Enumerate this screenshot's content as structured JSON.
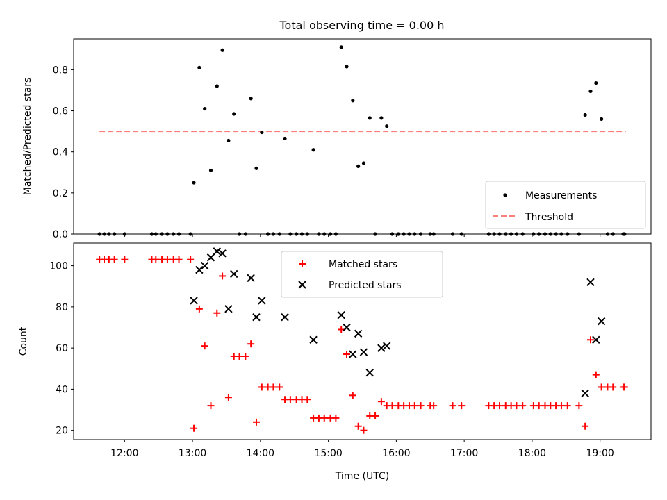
{
  "title": "Total observing time = 0.00 h",
  "colors": {
    "matched": "#ff0000",
    "predicted": "#000000",
    "threshold": "#ff7f7f",
    "measurement": "#000000"
  },
  "chart_data": [
    {
      "type": "scatter",
      "ylabel": "Matched/Predicted stars",
      "xlim": [
        11.25,
        19.75
      ],
      "ylim": [
        0,
        0.95
      ],
      "yticks": [
        0.0,
        0.2,
        0.4,
        0.6,
        0.8
      ],
      "ytick_labels": [
        "0.0",
        "0.2",
        "0.4",
        "0.6",
        "0.8"
      ],
      "legend_position": "bottom-right",
      "threshold": {
        "name": "Threshold",
        "value": 0.5,
        "x_range": [
          11.63,
          19.38
        ]
      },
      "series": [
        {
          "name": "Measurements",
          "points": [
            [
              11.63,
              0
            ],
            [
              11.7,
              0
            ],
            [
              11.77,
              0
            ],
            [
              11.85,
              0
            ],
            [
              12.0,
              0
            ],
            [
              12.4,
              0
            ],
            [
              12.46,
              0
            ],
            [
              12.55,
              0
            ],
            [
              12.63,
              0
            ],
            [
              12.72,
              0
            ],
            [
              12.8,
              0
            ],
            [
              12.97,
              0
            ],
            [
              13.02,
              0.25
            ],
            [
              13.1,
              0.81
            ],
            [
              13.18,
              0.61
            ],
            [
              13.27,
              0.31
            ],
            [
              13.36,
              0.72
            ],
            [
              13.44,
              0.895
            ],
            [
              13.53,
              0.455
            ],
            [
              13.61,
              0.585
            ],
            [
              13.69,
              0
            ],
            [
              13.78,
              0
            ],
            [
              13.86,
              0.66
            ],
            [
              13.94,
              0.32
            ],
            [
              14.02,
              0.495
            ],
            [
              14.11,
              0
            ],
            [
              14.19,
              0
            ],
            [
              14.28,
              0
            ],
            [
              14.36,
              0.465
            ],
            [
              14.44,
              0
            ],
            [
              14.53,
              0
            ],
            [
              14.61,
              0
            ],
            [
              14.69,
              0
            ],
            [
              14.78,
              0.41
            ],
            [
              14.86,
              0
            ],
            [
              14.94,
              0
            ],
            [
              15.03,
              0
            ],
            [
              15.11,
              0
            ],
            [
              15.19,
              0.91
            ],
            [
              15.27,
              0.815
            ],
            [
              15.36,
              0.65
            ],
            [
              15.44,
              0.33
            ],
            [
              15.52,
              0.345
            ],
            [
              15.61,
              0.565
            ],
            [
              15.69,
              0
            ],
            [
              15.78,
              0.565
            ],
            [
              15.86,
              0.525
            ],
            [
              15.94,
              0
            ],
            [
              16.03,
              0
            ],
            [
              16.11,
              0
            ],
            [
              16.19,
              0
            ],
            [
              16.27,
              0
            ],
            [
              16.36,
              0
            ],
            [
              16.5,
              0
            ],
            [
              16.55,
              0
            ],
            [
              16.83,
              0
            ],
            [
              16.96,
              0
            ],
            [
              17.36,
              0
            ],
            [
              17.44,
              0
            ],
            [
              17.52,
              0
            ],
            [
              17.61,
              0
            ],
            [
              17.69,
              0
            ],
            [
              17.77,
              0
            ],
            [
              17.86,
              0
            ],
            [
              18.02,
              0
            ],
            [
              18.1,
              0
            ],
            [
              18.19,
              0
            ],
            [
              18.27,
              0
            ],
            [
              18.35,
              0
            ],
            [
              18.43,
              0
            ],
            [
              18.52,
              0
            ],
            [
              18.69,
              0
            ],
            [
              18.78,
              0.58
            ],
            [
              18.86,
              0.695
            ],
            [
              18.94,
              0.735
            ],
            [
              19.02,
              0.56
            ],
            [
              19.11,
              0
            ],
            [
              19.19,
              0
            ],
            [
              19.34,
              0
            ],
            [
              19.36,
              0
            ]
          ]
        }
      ]
    },
    {
      "type": "scatter",
      "xlabel": "Time (UTC)",
      "ylabel": "Count",
      "xlim": [
        11.25,
        19.75
      ],
      "ylim": [
        15.5,
        111
      ],
      "xticks": [
        12,
        13,
        14,
        15,
        16,
        17,
        18,
        19
      ],
      "xtick_labels": [
        "12:00",
        "13:00",
        "14:00",
        "15:00",
        "16:00",
        "17:00",
        "18:00",
        "19:00"
      ],
      "yticks": [
        20,
        40,
        60,
        80,
        100
      ],
      "ytick_labels": [
        "20",
        "40",
        "60",
        "80",
        "100"
      ],
      "legend_position": "top-center",
      "series": [
        {
          "name": "Matched stars",
          "marker": "plus",
          "points": [
            [
              11.63,
              103
            ],
            [
              11.7,
              103
            ],
            [
              11.77,
              103
            ],
            [
              11.85,
              103
            ],
            [
              12.0,
              103
            ],
            [
              12.4,
              103
            ],
            [
              12.46,
              103
            ],
            [
              12.55,
              103
            ],
            [
              12.63,
              103
            ],
            [
              12.72,
              103
            ],
            [
              12.8,
              103
            ],
            [
              12.97,
              103
            ],
            [
              13.02,
              21
            ],
            [
              13.1,
              79
            ],
            [
              13.18,
              61
            ],
            [
              13.27,
              32
            ],
            [
              13.36,
              77
            ],
            [
              13.44,
              95
            ],
            [
              13.53,
              36
            ],
            [
              13.61,
              56
            ],
            [
              13.69,
              56
            ],
            [
              13.78,
              56
            ],
            [
              13.86,
              62
            ],
            [
              13.94,
              24
            ],
            [
              14.02,
              41
            ],
            [
              14.11,
              41
            ],
            [
              14.19,
              41
            ],
            [
              14.28,
              41
            ],
            [
              14.36,
              35
            ],
            [
              14.44,
              35
            ],
            [
              14.53,
              35
            ],
            [
              14.61,
              35
            ],
            [
              14.69,
              35
            ],
            [
              14.78,
              26
            ],
            [
              14.86,
              26
            ],
            [
              14.94,
              26
            ],
            [
              15.03,
              26
            ],
            [
              15.11,
              26
            ],
            [
              15.19,
              69
            ],
            [
              15.27,
              57
            ],
            [
              15.36,
              37
            ],
            [
              15.44,
              22
            ],
            [
              15.52,
              20
            ],
            [
              15.61,
              27
            ],
            [
              15.69,
              27
            ],
            [
              15.78,
              34
            ],
            [
              15.86,
              32
            ],
            [
              15.94,
              32
            ],
            [
              16.03,
              32
            ],
            [
              16.11,
              32
            ],
            [
              16.19,
              32
            ],
            [
              16.27,
              32
            ],
            [
              16.36,
              32
            ],
            [
              16.5,
              32
            ],
            [
              16.55,
              32
            ],
            [
              16.83,
              32
            ],
            [
              16.96,
              32
            ],
            [
              17.36,
              32
            ],
            [
              17.44,
              32
            ],
            [
              17.52,
              32
            ],
            [
              17.61,
              32
            ],
            [
              17.69,
              32
            ],
            [
              17.77,
              32
            ],
            [
              17.86,
              32
            ],
            [
              18.02,
              32
            ],
            [
              18.1,
              32
            ],
            [
              18.19,
              32
            ],
            [
              18.27,
              32
            ],
            [
              18.35,
              32
            ],
            [
              18.43,
              32
            ],
            [
              18.52,
              32
            ],
            [
              18.69,
              32
            ],
            [
              18.78,
              22
            ],
            [
              18.86,
              64
            ],
            [
              18.94,
              47
            ],
            [
              19.02,
              41
            ],
            [
              19.11,
              41
            ],
            [
              19.19,
              41
            ],
            [
              19.34,
              41
            ],
            [
              19.36,
              41
            ]
          ]
        },
        {
          "name": "Predicted stars",
          "marker": "x",
          "points": [
            [
              13.02,
              83
            ],
            [
              13.1,
              98
            ],
            [
              13.18,
              100
            ],
            [
              13.27,
              104
            ],
            [
              13.36,
              107
            ],
            [
              13.44,
              106
            ],
            [
              13.53,
              79
            ],
            [
              13.61,
              96
            ],
            [
              13.86,
              94
            ],
            [
              13.94,
              75
            ],
            [
              14.02,
              83
            ],
            [
              14.36,
              75
            ],
            [
              14.78,
              64
            ],
            [
              15.19,
              76
            ],
            [
              15.27,
              70
            ],
            [
              15.36,
              57
            ],
            [
              15.44,
              67
            ],
            [
              15.52,
              58
            ],
            [
              15.61,
              48
            ],
            [
              15.78,
              60
            ],
            [
              15.86,
              61
            ],
            [
              18.78,
              38
            ],
            [
              18.86,
              92
            ],
            [
              18.94,
              64
            ],
            [
              19.02,
              73
            ]
          ]
        }
      ]
    }
  ]
}
